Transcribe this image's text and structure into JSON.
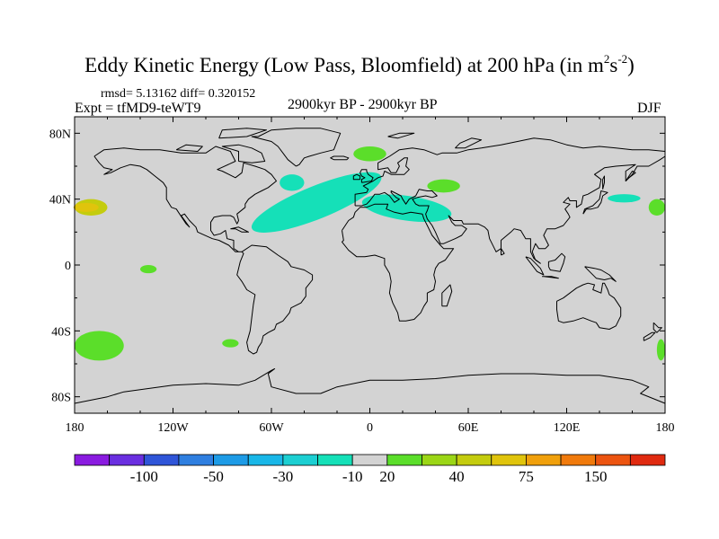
{
  "title": {
    "main": "Eddy Kinetic Energy (Low Pass, Bloomfield) at 200 hPa (in m",
    "sup1": "2",
    "s": "s",
    "sup2": "-2",
    "close": ")"
  },
  "stats": "rmsd= 5.13162 diff= 0.320152",
  "experiment": "Expt = tfMD9-teWT9",
  "period": "2900kyr BP - 2900kyr BP",
  "season": "DJF",
  "chart_data": {
    "type": "heatmap",
    "title": "Eddy Kinetic Energy (Low Pass, Bloomfield) at 200 hPa (in m^2 s^-2)",
    "xlabel": "",
    "ylabel": "",
    "xlim": [
      -180,
      180
    ],
    "ylim": [
      -90,
      90
    ],
    "x_ticks": [
      {
        "value": -180,
        "label": "180"
      },
      {
        "value": -120,
        "label": "120W"
      },
      {
        "value": -60,
        "label": "60W"
      },
      {
        "value": 0,
        "label": "0"
      },
      {
        "value": 60,
        "label": "60E"
      },
      {
        "value": 120,
        "label": "120E"
      },
      {
        "value": 180,
        "label": "180"
      }
    ],
    "y_ticks": [
      {
        "value": 80,
        "label": "80N"
      },
      {
        "value": 40,
        "label": "40N"
      },
      {
        "value": 0,
        "label": "0"
      },
      {
        "value": -40,
        "label": "40S"
      },
      {
        "value": -80,
        "label": "80S"
      }
    ],
    "background_color": "#d3d3d3",
    "colorbar": {
      "colors": [
        "#8a1be0",
        "#6a2fe0",
        "#2f55d8",
        "#2f7fe0",
        "#1d9be6",
        "#19b7e8",
        "#1ccfd2",
        "#15e0b8",
        "#d3d3d3",
        "#5bde2a",
        "#9bd616",
        "#c4cc0e",
        "#e0c40c",
        "#f0a00c",
        "#f07a0c",
        "#ec5410",
        "#e02a10"
      ],
      "label_positions": [
        2,
        4,
        6,
        8,
        9,
        11,
        13,
        15
      ],
      "labels": [
        "-100",
        "-50",
        "-30",
        "-10",
        "20",
        "40",
        "75",
        "150"
      ]
    },
    "regions": [
      {
        "name": "north-atlantic-storm-track",
        "category": "-10",
        "lon_range": [
          -75,
          10
        ],
        "lat_range": [
          28,
          48
        ]
      },
      {
        "name": "labrador-sea-patch",
        "category": "-10",
        "lon_range": [
          -55,
          -40
        ],
        "lat_range": [
          45,
          55
        ]
      },
      {
        "name": "mediterranean-band",
        "category": "-10",
        "lon_range": [
          -5,
          50
        ],
        "lat_range": [
          27,
          42
        ]
      },
      {
        "name": "norwegian-sea-patch",
        "category": "20",
        "lon_range": [
          -10,
          10
        ],
        "lat_range": [
          63,
          72
        ]
      },
      {
        "name": "black-sea-patch",
        "category": "20",
        "lon_range": [
          35,
          55
        ],
        "lat_range": [
          44,
          52
        ]
      },
      {
        "name": "north-pacific-west",
        "category": "40",
        "lon_range": [
          -180,
          -160
        ],
        "lat_range": [
          30,
          40
        ]
      },
      {
        "name": "north-pacific-east",
        "category": "20",
        "lon_range": [
          170,
          180
        ],
        "lat_range": [
          30,
          40
        ]
      },
      {
        "name": "central-pacific-patch",
        "category": "-10",
        "lon_range": [
          145,
          165
        ],
        "lat_range": [
          38,
          43
        ]
      },
      {
        "name": "tropical-east-pacific",
        "category": "20",
        "lon_range": [
          -140,
          -130
        ],
        "lat_range": [
          -5,
          0
        ]
      },
      {
        "name": "south-pacific-west",
        "category": "20",
        "lon_range": [
          -180,
          -150
        ],
        "lat_range": [
          -58,
          -40
        ]
      },
      {
        "name": "south-atlantic-patch",
        "category": "20",
        "lon_range": [
          -90,
          -80
        ],
        "lat_range": [
          -50,
          -45
        ]
      },
      {
        "name": "south-indian-east",
        "category": "20",
        "lon_range": [
          175,
          180
        ],
        "lat_range": [
          -58,
          -45
        ]
      }
    ]
  }
}
